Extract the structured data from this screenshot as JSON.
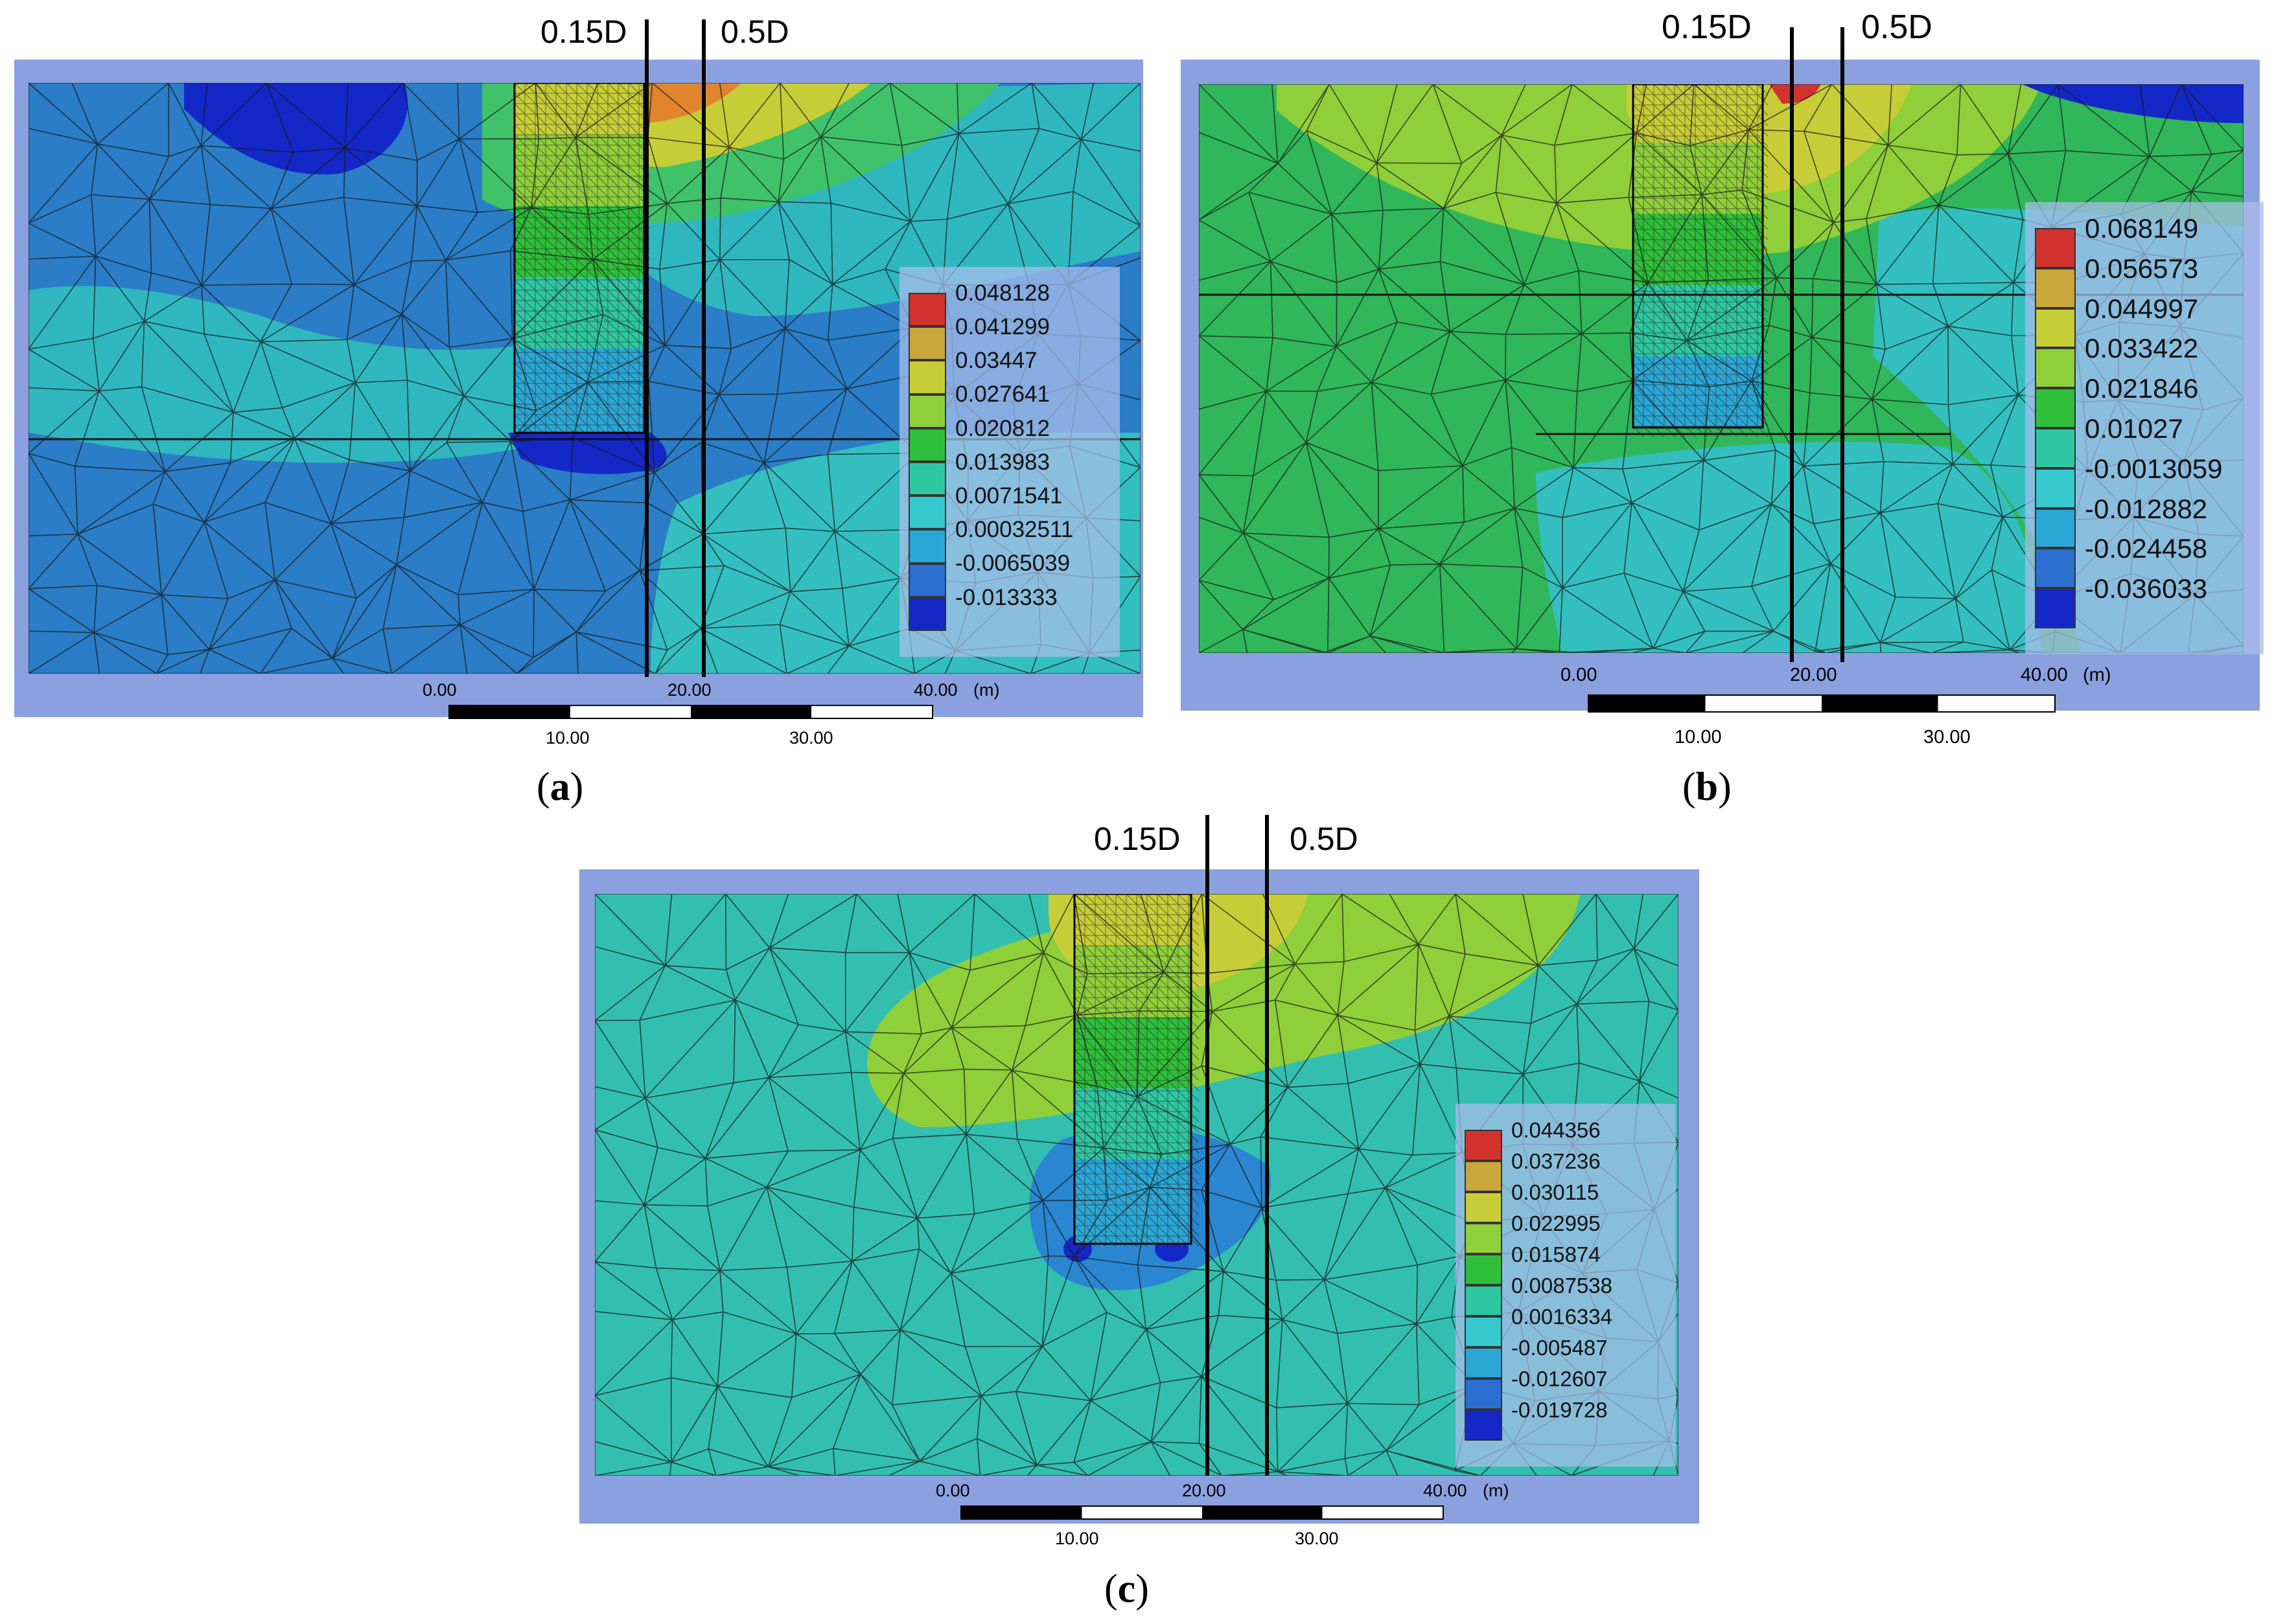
{
  "panels": [
    {
      "id": "a",
      "caption": "a",
      "reference_lines": [
        "0.15D",
        "0.5D"
      ],
      "legend": [
        "0.048128",
        "0.041299",
        "0.03447",
        "0.027641",
        "0.020812",
        "0.013983",
        "0.0071541",
        "0.00032511",
        "-0.0065039",
        "-0.013333"
      ],
      "scale_bar": {
        "top": [
          "0.00",
          "20.00",
          "40.00"
        ],
        "unit": "(m)",
        "bottom": [
          "10.00",
          "30.00"
        ]
      }
    },
    {
      "id": "b",
      "caption": "b",
      "reference_lines": [
        "0.15D",
        "0.5D"
      ],
      "legend": [
        "0.068149",
        "0.056573",
        "0.044997",
        "0.033422",
        "0.021846",
        "0.01027",
        "-0.0013059",
        "-0.012882",
        "-0.024458",
        "-0.036033"
      ],
      "scale_bar": {
        "top": [
          "0.00",
          "20.00",
          "40.00"
        ],
        "unit": "(m)",
        "bottom": [
          "10.00",
          "30.00"
        ]
      }
    },
    {
      "id": "c",
      "caption": "c",
      "reference_lines": [
        "0.15D",
        "0.5D"
      ],
      "legend": [
        "0.044356",
        "0.037236",
        "0.030115",
        "0.022995",
        "0.015874",
        "0.0087538",
        "0.0016334",
        "-0.005487",
        "-0.012607",
        "-0.019728"
      ],
      "scale_bar": {
        "top": [
          "0.00",
          "20.00",
          "40.00"
        ],
        "unit": "(m)",
        "bottom": [
          "10.00",
          "30.00"
        ]
      }
    }
  ],
  "colors": {
    "legend_swatches": [
      "#d2322d",
      "#c9a63a",
      "#c7cd36",
      "#8fcf3a",
      "#2fbf3a",
      "#2fc7a2",
      "#35c8cc",
      "#2ba7d6",
      "#2a6fd0",
      "#1428c8"
    ],
    "frame": "#8aa0df",
    "mesh_line": "#1a1a1a"
  }
}
